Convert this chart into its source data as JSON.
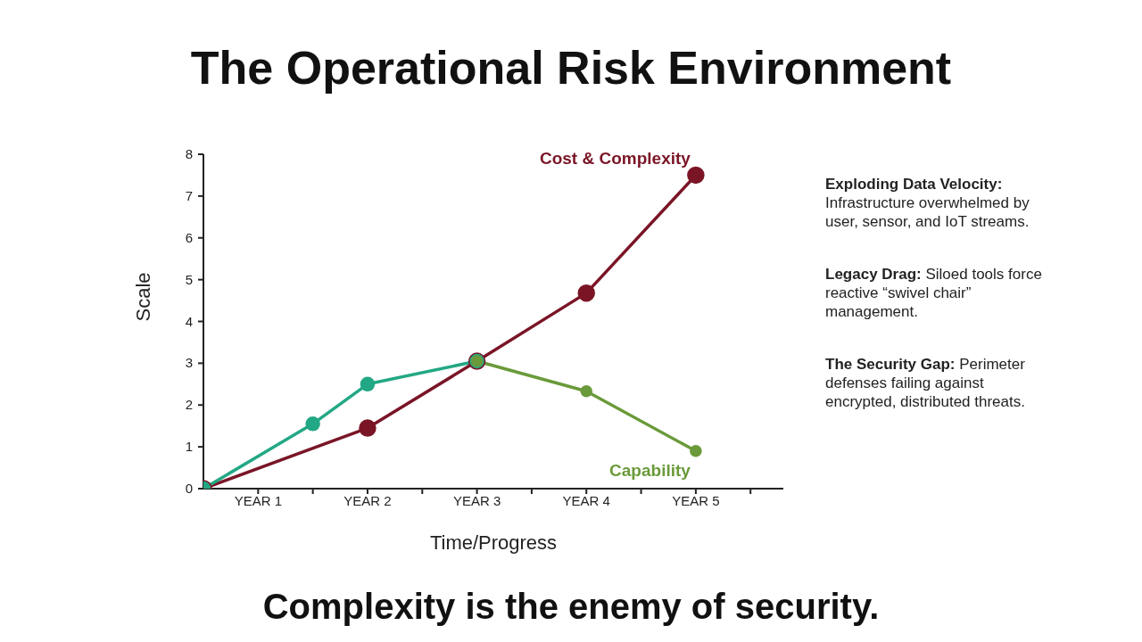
{
  "chart_data": {
    "type": "line",
    "title": "The Operational Risk Environment",
    "subtitle": "Complexity is the enemy of security.",
    "xlabel": "Time/Progress",
    "ylabel": "Scale",
    "categories": [
      null,
      "YEAR 1",
      null,
      "YEAR 2",
      null,
      "YEAR 3",
      null,
      "YEAR 4",
      null,
      "YEAR 5",
      null
    ],
    "ylim": [
      0,
      8
    ],
    "yticks": [
      0,
      1,
      2,
      3,
      4,
      5,
      6,
      7,
      8
    ],
    "grid": false,
    "legend": false,
    "marker": "circle",
    "line_style": "solid",
    "series": [
      {
        "name": "Cost & Complexity",
        "color": "#7a1526",
        "values": [
          0,
          null,
          null,
          1.45,
          null,
          3.05,
          null,
          4.68,
          null,
          7.5,
          null
        ]
      },
      {
        "color": "#22a884",
        "values": [
          0,
          null,
          1.55,
          2.5,
          null,
          3.05,
          null,
          null,
          null,
          null,
          null
        ]
      },
      {
        "name": "Capability",
        "color": "#6a9a3a",
        "values": [
          null,
          null,
          null,
          null,
          null,
          3.05,
          null,
          2.33,
          null,
          0.9,
          null
        ]
      }
    ],
    "annotations": [
      "Exploding Data Velocity: Infrastructure overwhelmed by user, sensor, and IoT streams.",
      "Legacy Drag: Siloed tools force reactive “swivel chair” management.",
      "The Security Gap: Perimeter defenses failing against encrypted, distributed threats."
    ]
  }
}
